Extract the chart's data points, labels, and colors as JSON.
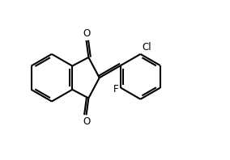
{
  "bg_color": "#ffffff",
  "line_color": "#000000",
  "line_width": 1.5,
  "font_size": 8.5,
  "label_color": "#000000",
  "xlim": [
    0,
    10
  ],
  "ylim": [
    0,
    7
  ]
}
